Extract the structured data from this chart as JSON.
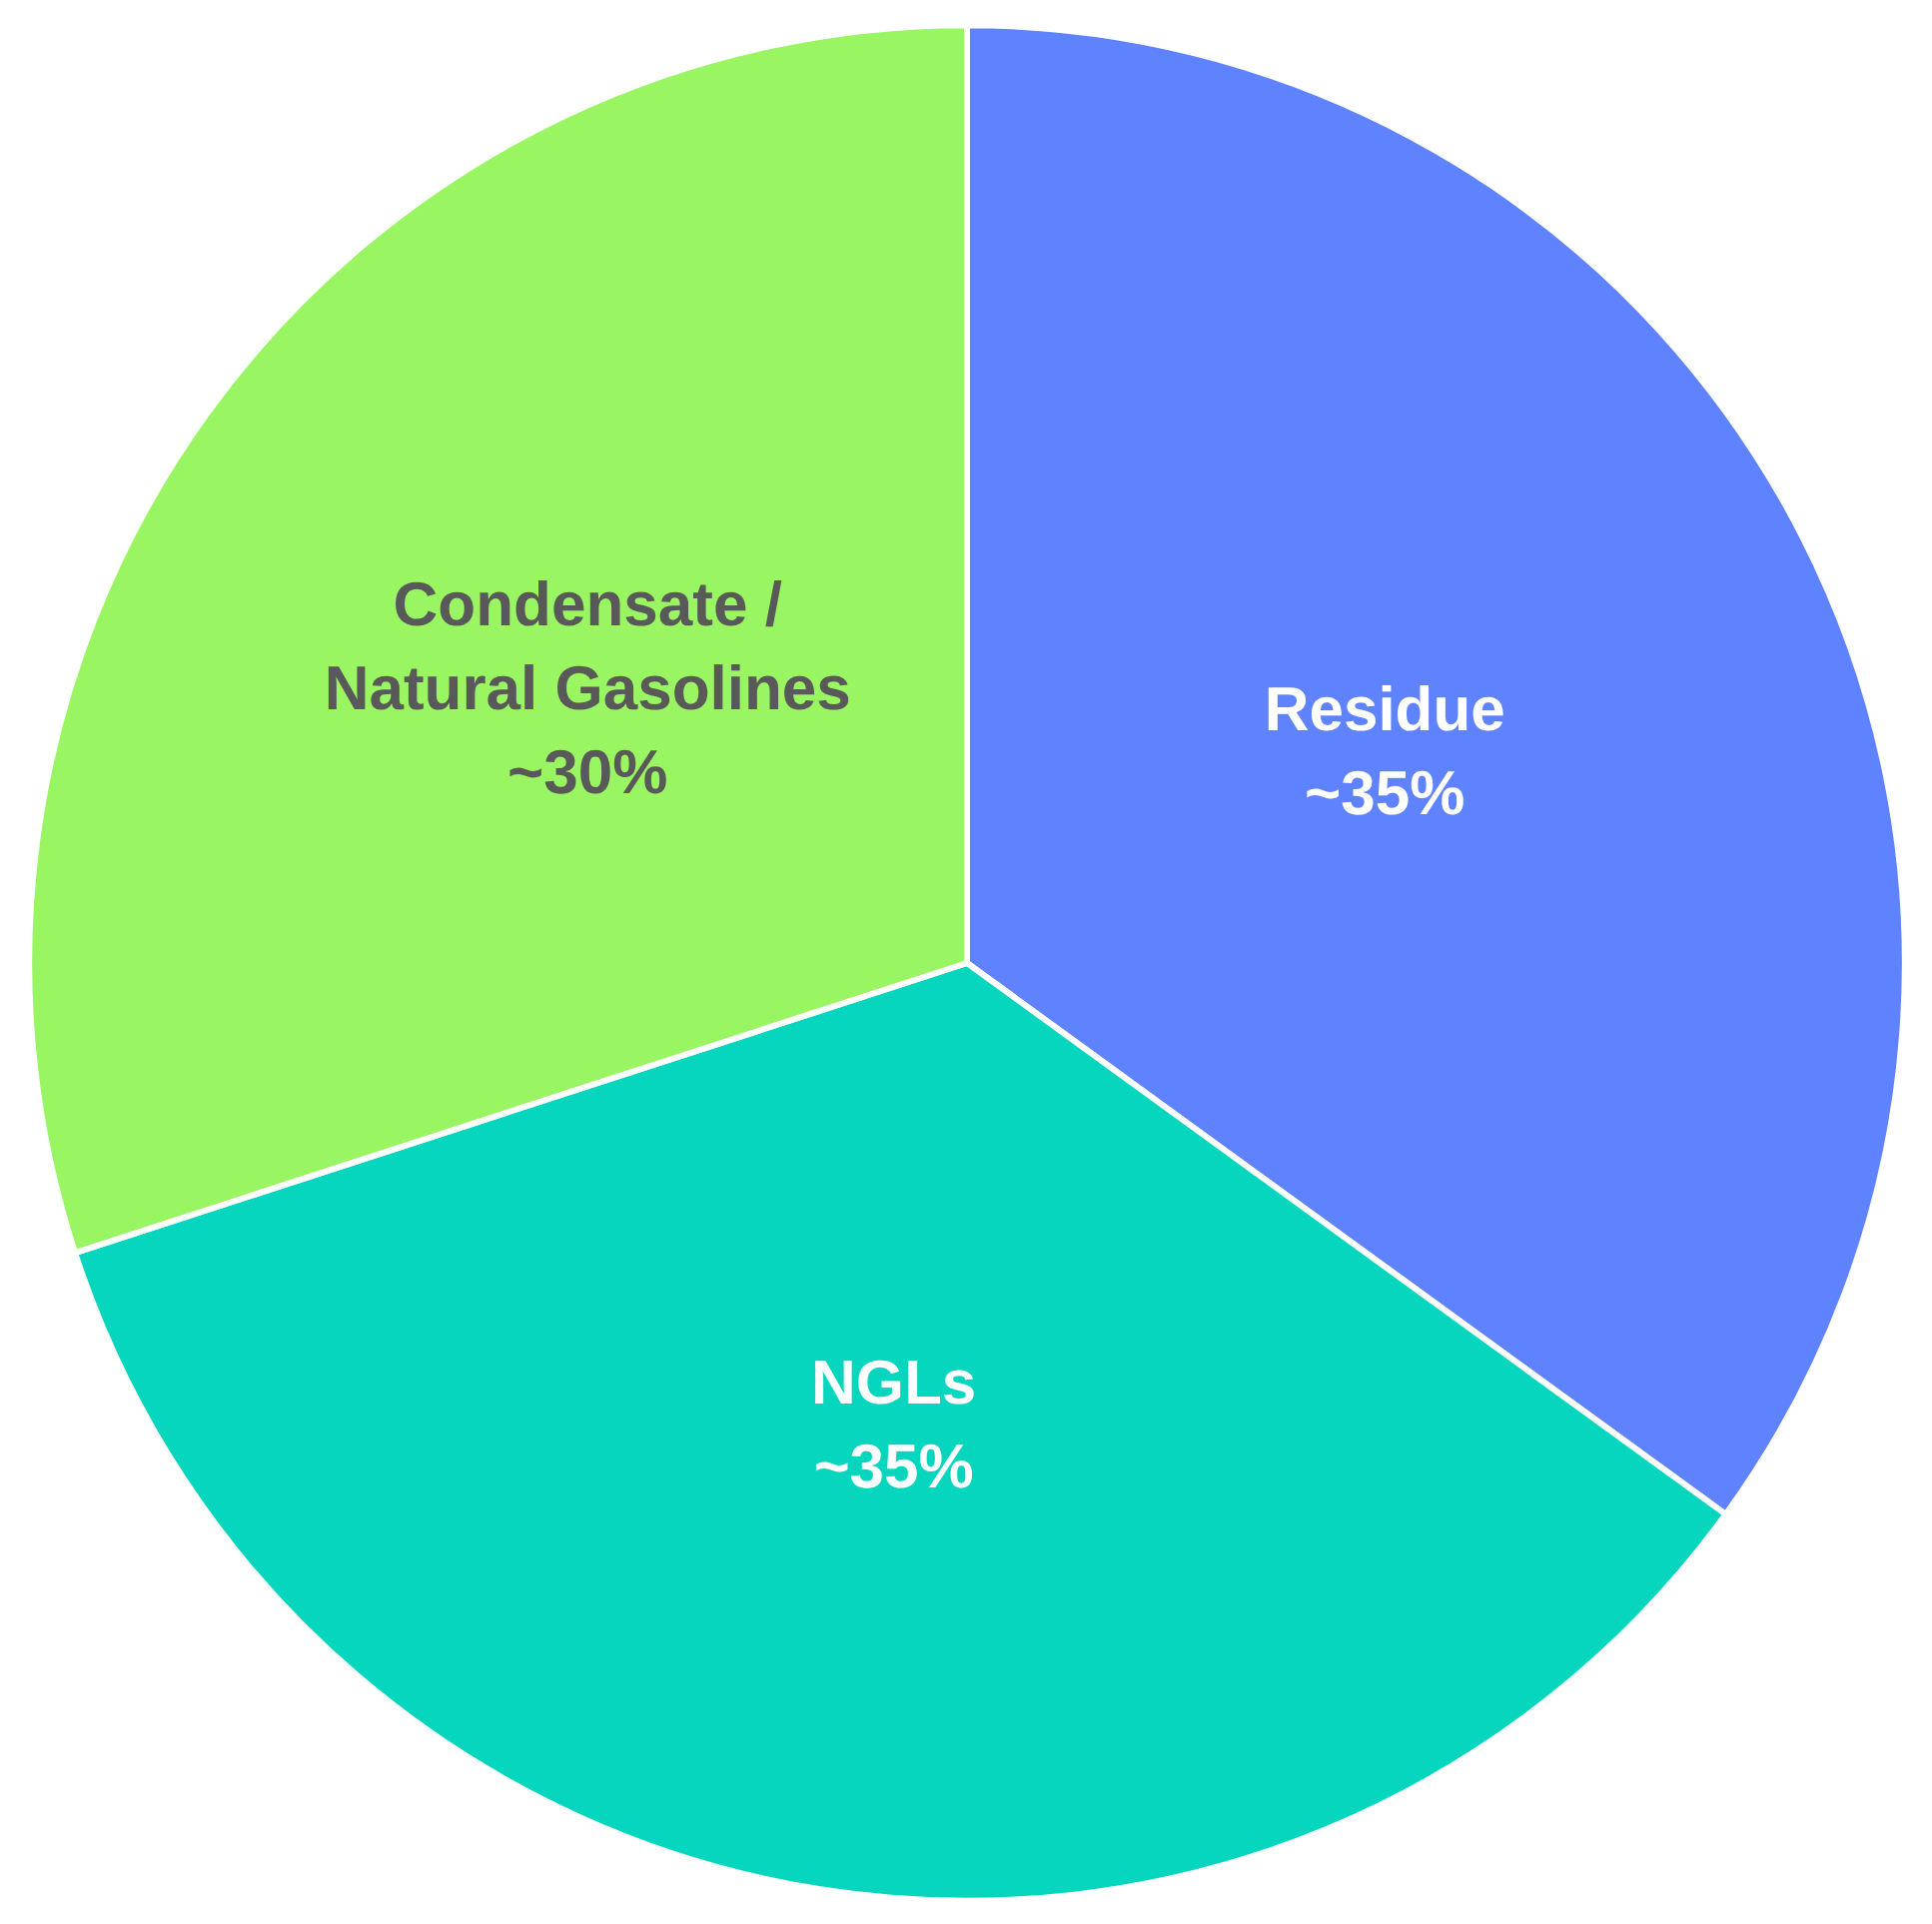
{
  "chart_data": {
    "type": "pie",
    "categories": [
      "Residue",
      "NGLs",
      "Condensate /\nNatural Gasolines"
    ],
    "values": [
      35,
      35,
      30
    ],
    "colors": [
      "#5f82ff",
      "#05d6bd",
      "#99f562"
    ],
    "value_labels": [
      "~35%",
      "~35%",
      "~30%"
    ]
  }
}
